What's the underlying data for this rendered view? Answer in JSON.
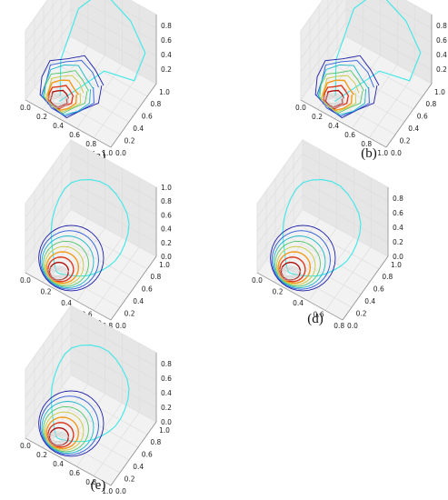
{
  "chart_data": [
    {
      "type": "3d-line",
      "caption": "(a)",
      "xticks": [
        "0.0",
        "0.2",
        "0.4",
        "0.6",
        "0.8",
        "1.0"
      ],
      "yticks": [
        "0.0",
        "0.2",
        "0.4",
        "0.6",
        "0.8",
        "1.0"
      ],
      "zticks": [
        "0.2",
        "0.4",
        "0.6",
        "0.8"
      ],
      "zlim": [
        0,
        0.95
      ],
      "outer_curve": {
        "color": "#3ce8e8",
        "style": "jagged"
      },
      "contour_colors": [
        "#1f1fa8",
        "#2b59d9",
        "#19b7c9",
        "#53c66a",
        "#c7c93a",
        "#f29a1a",
        "#e0381c",
        "#b0100d"
      ]
    },
    {
      "type": "3d-line",
      "caption": "(b)",
      "xticks": [
        "0.0",
        "0.2",
        "0.4",
        "0.6",
        "0.8",
        "1.0"
      ],
      "yticks": [
        "0.0",
        "0.2",
        "0.4",
        "0.6",
        "0.8",
        "1.0"
      ],
      "zticks": [
        "0.2",
        "0.4",
        "0.6",
        "0.8"
      ],
      "zlim": [
        0,
        0.95
      ],
      "outer_curve": {
        "color": "#3ce8e8",
        "style": "jagged"
      },
      "contour_colors": [
        "#1f1fa8",
        "#2b59d9",
        "#19b7c9",
        "#53c66a",
        "#c7c93a",
        "#f29a1a",
        "#e0381c",
        "#b0100d"
      ]
    },
    {
      "type": "3d-line",
      "caption": "(c)",
      "xticks": [
        "0.0",
        "0.2",
        "0.4",
        "0.6",
        "0.8"
      ],
      "yticks": [
        "0.0",
        "0.2",
        "0.4",
        "0.6",
        "0.8",
        "1.0"
      ],
      "zticks": [
        "0.0",
        "0.2",
        "0.4",
        "0.6",
        "0.8",
        "1.0"
      ],
      "zlim": [
        0,
        1.0
      ],
      "outer_curve": {
        "color": "#3ce8e8",
        "style": "smooth"
      },
      "contour_colors": [
        "#1f1fa8",
        "#2b59d9",
        "#19b7c9",
        "#53c66a",
        "#c7c93a",
        "#f29a1a",
        "#e0381c",
        "#b0100d"
      ]
    },
    {
      "type": "3d-line",
      "caption": "(d)",
      "xticks": [
        "0.0",
        "0.2",
        "0.4",
        "0.6",
        "0.8"
      ],
      "yticks": [
        "0.0",
        "0.2",
        "0.4",
        "0.6",
        "0.8",
        "1.0"
      ],
      "zticks": [
        "0.0",
        "0.2",
        "0.4",
        "0.6",
        "0.8"
      ],
      "zlim": [
        0,
        0.95
      ],
      "outer_curve": {
        "color": "#3ce8e8",
        "style": "smooth"
      },
      "contour_colors": [
        "#1f1fa8",
        "#2b59d9",
        "#19b7c9",
        "#53c66a",
        "#c7c93a",
        "#f29a1a",
        "#e0381c",
        "#b0100d"
      ]
    },
    {
      "type": "3d-line",
      "caption": "(e)",
      "xticks": [
        "0.0",
        "0.2",
        "0.4",
        "0.6",
        "0.8",
        "1.0"
      ],
      "yticks": [
        "0.0",
        "0.2",
        "0.4",
        "0.6",
        "0.8",
        "1.0"
      ],
      "zticks": [
        "0.0",
        "0.2",
        "0.4",
        "0.6",
        "0.8"
      ],
      "zlim": [
        0,
        0.95
      ],
      "outer_curve": {
        "color": "#3ce8e8",
        "style": "smooth"
      },
      "contour_colors": [
        "#1f1fa8",
        "#2b59d9",
        "#19b7c9",
        "#53c66a",
        "#c7c93a",
        "#f29a1a",
        "#e0381c",
        "#b0100d"
      ]
    }
  ]
}
